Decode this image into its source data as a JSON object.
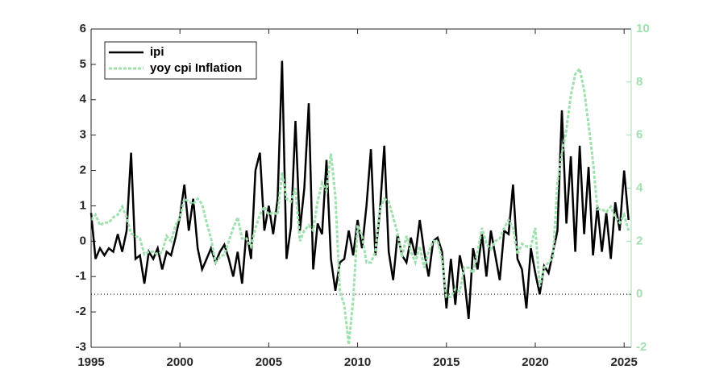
{
  "chart_data": {
    "type": "line",
    "x": [
      1995,
      1995.25,
      1995.5,
      1995.75,
      1996,
      1996.25,
      1996.5,
      1996.75,
      1997,
      1997.25,
      1997.5,
      1997.75,
      1998,
      1998.25,
      1998.5,
      1998.75,
      1999,
      1999.25,
      1999.5,
      1999.75,
      2000,
      2000.25,
      2000.5,
      2000.75,
      2001,
      2001.25,
      2001.5,
      2001.75,
      2002,
      2002.25,
      2002.5,
      2002.75,
      2003,
      2003.25,
      2003.5,
      2003.75,
      2004,
      2004.25,
      2004.5,
      2004.75,
      2005,
      2005.25,
      2005.5,
      2005.75,
      2006,
      2006.25,
      2006.5,
      2006.75,
      2007,
      2007.25,
      2007.5,
      2007.75,
      2008,
      2008.25,
      2008.5,
      2008.75,
      2009,
      2009.25,
      2009.5,
      2009.75,
      2010,
      2010.25,
      2010.5,
      2010.75,
      2011,
      2011.25,
      2011.5,
      2011.75,
      2012,
      2012.25,
      2012.5,
      2012.75,
      2013,
      2013.25,
      2013.5,
      2013.75,
      2014,
      2014.25,
      2014.5,
      2014.75,
      2015,
      2015.25,
      2015.5,
      2015.75,
      2016,
      2016.25,
      2016.5,
      2016.75,
      2017,
      2017.25,
      2017.5,
      2017.75,
      2018,
      2018.25,
      2018.5,
      2018.75,
      2019,
      2019.25,
      2019.5,
      2019.75,
      2020,
      2020.25,
      2020.5,
      2020.75,
      2021,
      2021.25,
      2021.5,
      2021.75,
      2022,
      2022.25,
      2022.5,
      2022.75,
      2023,
      2023.25,
      2023.5,
      2023.75,
      2024,
      2024.25,
      2024.5,
      2024.75,
      2025,
      2025.25
    ],
    "series": [
      {
        "name": "ipi",
        "color": "#000000",
        "dash": "solid",
        "values": [
          0.8,
          -0.5,
          -0.2,
          -0.4,
          -0.2,
          -0.3,
          0.2,
          -0.3,
          0.3,
          2.5,
          -0.5,
          -0.4,
          -1.2,
          -0.3,
          -0.5,
          -0.2,
          -0.8,
          -0.3,
          -0.4,
          0.1,
          0.7,
          1.6,
          0.3,
          1.2,
          -0.2,
          -0.8,
          -0.5,
          -0.2,
          -0.6,
          -0.3,
          -0.1,
          -0.5,
          -1.0,
          -0.3,
          -1.2,
          0.3,
          -0.5,
          2.0,
          2.5,
          0.3,
          1.0,
          0.2,
          1.2,
          5.1,
          -0.5,
          0.4,
          3.4,
          0.3,
          1.5,
          3.9,
          -0.8,
          0.5,
          0.2,
          2.3,
          -0.5,
          -1.4,
          -0.6,
          -0.5,
          0.3,
          -0.4,
          0.6,
          -0.2,
          1.0,
          2.6,
          -0.4,
          0.8,
          2.7,
          -0.3,
          -1.1,
          0.2,
          -0.4,
          -0.6,
          0.1,
          -0.4,
          0.6,
          -0.3,
          -1.0,
          0.0,
          0.1,
          -0.3,
          -1.9,
          -0.5,
          -1.8,
          -0.4,
          -1.0,
          -2.2,
          -0.2,
          -0.8,
          0.2,
          -1.0,
          0.3,
          -0.4,
          -1.1,
          0.3,
          0.2,
          1.6,
          -0.5,
          -0.8,
          -1.9,
          -0.2,
          -0.9,
          -1.5,
          -0.7,
          -0.9,
          -0.3,
          0.3,
          3.7,
          0.5,
          2.4,
          -0.3,
          2.7,
          0.2,
          2.1,
          -0.4,
          1.0,
          -0.3,
          0.8,
          -0.5,
          1.1,
          0.3,
          2.0,
          0.6
        ]
      },
      {
        "name": "yoy cpi Inflation",
        "color": "#9fe0ae",
        "dash": "dashed",
        "axis": "y2",
        "values": [
          2.8,
          3.0,
          2.6,
          2.7,
          2.7,
          2.9,
          3.0,
          3.3,
          2.9,
          2.3,
          2.2,
          2.1,
          1.5,
          1.6,
          1.6,
          1.5,
          1.6,
          2.2,
          2.0,
          2.6,
          2.9,
          3.6,
          3.5,
          3.4,
          3.6,
          3.4,
          2.7,
          2.1,
          1.2,
          1.4,
          1.5,
          2.0,
          2.5,
          2.9,
          2.1,
          2.1,
          1.8,
          2.5,
          3.0,
          3.3,
          3.0,
          3.1,
          3.0,
          4.6,
          3.6,
          3.5,
          4.0,
          2.0,
          2.4,
          2.6,
          2.4,
          3.5,
          4.2,
          3.9,
          5.3,
          3.7,
          0.1,
          -0.4,
          -1.9,
          -0.2,
          2.6,
          2.2,
          1.2,
          1.2,
          1.6,
          3.2,
          3.6,
          3.5,
          2.9,
          2.3,
          1.4,
          2.2,
          1.6,
          1.2,
          1.8,
          1.0,
          1.6,
          2.0,
          2.0,
          1.3,
          -0.1,
          -0.1,
          0.2,
          0.1,
          1.0,
          1.0,
          0.8,
          1.6,
          2.5,
          1.9,
          1.7,
          2.0,
          2.1,
          2.5,
          2.8,
          2.5,
          1.5,
          1.9,
          1.8,
          1.8,
          2.5,
          0.3,
          1.0,
          1.2,
          1.4,
          4.2,
          5.3,
          6.2,
          7.5,
          8.3,
          8.5,
          7.7,
          6.4,
          5.0,
          3.2,
          3.2,
          3.1,
          3.3,
          2.9,
          2.7,
          3.0,
          2.4
        ]
      }
    ],
    "xlim": [
      1995,
      2025.4
    ],
    "xticks": [
      1995,
      2000,
      2005,
      2010,
      2015,
      2020,
      2025
    ],
    "ylim": [
      -3,
      6
    ],
    "yticks": [
      -3,
      -2,
      -1,
      0,
      1,
      2,
      3,
      4,
      5,
      6
    ],
    "y2lim": [
      -2,
      10
    ],
    "y2ticks": [
      -2,
      0,
      2,
      4,
      6,
      8,
      10
    ],
    "y2_color": "#9fe0ae",
    "y2_reference_line": 0,
    "legend": "upper-left",
    "grid": false
  }
}
